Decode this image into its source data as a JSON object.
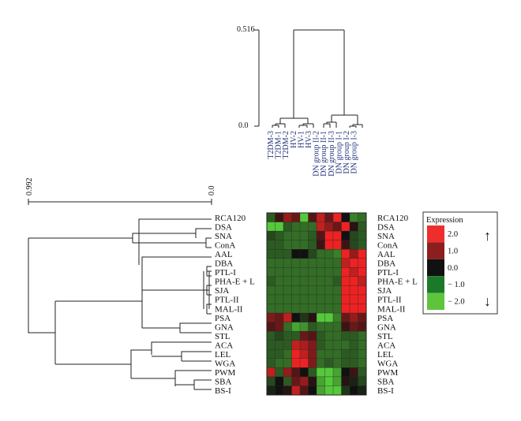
{
  "chart_data": {
    "type": "heatmap",
    "title": "",
    "columns": [
      "T2DM-3",
      "T2DM-1",
      "T2DM-2",
      "HV-2",
      "HV-1",
      "HV-3",
      "DN group II-2",
      "DN group II-1",
      "DN group II-3",
      "DN group I-1",
      "DN group I-2",
      "DN group I-3"
    ],
    "rows": [
      "RCA120",
      "DSA",
      "SNA",
      "ConA",
      "AAL",
      "DBA",
      "PTL-I",
      "PHA-E + L",
      "SJA",
      "PTL-II",
      "MAL-II",
      "PSA",
      "GNA",
      "STL",
      "ACA",
      "LEL",
      "WGA",
      "PWM",
      "SBA",
      "BS-I"
    ],
    "values": [
      [
        -0.8,
        0.4,
        1.2,
        0.8,
        -2.0,
        0.6,
        1.6,
        0.8,
        2.0,
        0.0,
        -1.2,
        -1.0
      ],
      [
        -2.0,
        -2.0,
        -0.8,
        -1.0,
        -1.0,
        -1.0,
        1.6,
        1.2,
        0.8,
        2.0,
        0.2,
        -0.8
      ],
      [
        -0.6,
        -0.8,
        -1.0,
        -1.0,
        -1.0,
        -0.8,
        0.6,
        2.0,
        2.0,
        0.0,
        -0.6,
        -0.8
      ],
      [
        -0.8,
        -0.8,
        -1.0,
        -1.0,
        -1.0,
        -0.8,
        0.4,
        2.0,
        2.0,
        0.4,
        -0.6,
        -0.8
      ],
      [
        -0.8,
        -0.8,
        -0.8,
        0.0,
        0.0,
        -0.6,
        -1.0,
        -1.0,
        -1.2,
        2.0,
        1.2,
        2.0
      ],
      [
        -1.0,
        -1.0,
        -1.0,
        -1.0,
        -1.0,
        -1.0,
        -1.0,
        -1.0,
        -1.0,
        1.6,
        2.0,
        2.0
      ],
      [
        -1.0,
        -1.0,
        -1.0,
        -1.0,
        -1.0,
        -1.0,
        -1.0,
        -1.0,
        -1.0,
        2.0,
        1.6,
        2.0
      ],
      [
        -0.8,
        -1.0,
        -1.0,
        -1.0,
        -1.0,
        -1.0,
        -1.0,
        -1.0,
        -0.8,
        2.0,
        2.0,
        1.6
      ],
      [
        -1.0,
        -1.0,
        -1.0,
        -1.0,
        -1.0,
        -1.0,
        -1.0,
        -1.0,
        -1.0,
        2.0,
        2.0,
        2.0
      ],
      [
        -1.0,
        -1.0,
        -1.0,
        -1.0,
        -1.0,
        -1.0,
        -1.0,
        -1.0,
        -1.0,
        2.0,
        2.0,
        2.0
      ],
      [
        -1.0,
        -1.0,
        -1.0,
        -1.0,
        -1.0,
        -1.0,
        -1.0,
        -1.0,
        -1.0,
        2.0,
        2.0,
        2.0
      ],
      [
        1.0,
        0.8,
        1.6,
        0.0,
        -0.4,
        0.2,
        -2.0,
        -2.0,
        -1.2,
        0.8,
        1.2,
        0.8
      ],
      [
        0.6,
        0.8,
        -1.0,
        -1.6,
        -1.4,
        -0.8,
        -1.0,
        -1.0,
        -1.0,
        0.4,
        0.8,
        0.6
      ],
      [
        -0.8,
        -0.6,
        -0.8,
        -0.8,
        0.8,
        0.6,
        -0.8,
        -1.0,
        -1.0,
        -0.8,
        -0.8,
        -1.0
      ],
      [
        -0.8,
        -0.8,
        -0.8,
        1.6,
        1.4,
        1.0,
        -0.8,
        -1.0,
        -1.0,
        -1.0,
        -0.8,
        -1.0
      ],
      [
        -0.8,
        -0.8,
        -1.0,
        2.0,
        1.6,
        1.0,
        -1.0,
        -1.0,
        -1.0,
        -0.8,
        -0.8,
        -1.0
      ],
      [
        -0.8,
        -1.0,
        -1.0,
        2.0,
        2.0,
        1.0,
        -1.0,
        -0.8,
        -1.0,
        -0.8,
        -0.8,
        -1.0
      ],
      [
        1.6,
        -0.8,
        1.2,
        0.6,
        0.0,
        -0.8,
        -2.0,
        -2.0,
        -1.6,
        0.0,
        0.4,
        -0.8
      ],
      [
        -0.6,
        0.0,
        -0.8,
        0.8,
        1.2,
        0.2,
        -1.6,
        -2.0,
        -1.6,
        0.2,
        -0.2,
        -0.6
      ],
      [
        -0.2,
        0.0,
        0.2,
        1.6,
        0.6,
        0.0,
        -1.6,
        -2.0,
        -2.0,
        -0.4,
        0.0,
        -0.2
      ]
    ],
    "column_dendrogram": {
      "max_label": "0.516",
      "min_label": "0.0"
    },
    "row_dendrogram": {
      "max_label": "0.992",
      "min_label": "0.0"
    },
    "legend": {
      "title": "Expression",
      "entries": [
        {
          "label": "2.0",
          "color": "#ee2d2d"
        },
        {
          "label": "1.0",
          "color": "#8c1e1e"
        },
        {
          "label": "0.0",
          "color": "#111111"
        },
        {
          "label": "− 1.0",
          "color": "#1a7a2a"
        },
        {
          "label": "− 2.0",
          "color": "#5ec43c"
        }
      ],
      "up_arrow": "↑",
      "down_arrow": "↓"
    },
    "colors": {
      "high": "#ee2222",
      "zero": "#111111",
      "low": "#55c93a"
    }
  }
}
